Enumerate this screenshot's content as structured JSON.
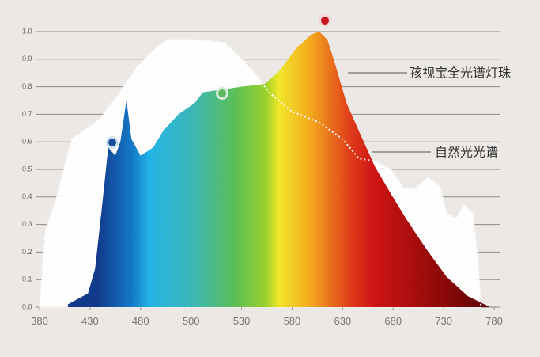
{
  "chart_data": {
    "type": "area",
    "xlim": [
      380,
      780
    ],
    "xticks": [
      380,
      430,
      480,
      500,
      530,
      580,
      630,
      680,
      730,
      780
    ],
    "ylim": [
      0,
      1
    ],
    "yticks": [
      {
        "value": 0,
        "label": "0.0"
      },
      0.1,
      0.2,
      0.3,
      0.4,
      0.5,
      0.6,
      0.7,
      0.8,
      0.9,
      {
        "value": 1,
        "label": "1.0"
      }
    ],
    "grid": true,
    "series": [
      {
        "name": "自然光光谱",
        "color": "#ffffff",
        "x": [
          380,
          386,
          396,
          412,
          424,
          439,
          458,
          476,
          486,
          491,
          502,
          520,
          530,
          545,
          557,
          580,
          607,
          630,
          646,
          662,
          678,
          690,
          702,
          714,
          726,
          733,
          742,
          750,
          759,
          763,
          767
        ],
        "values": [
          0,
          0.28,
          0.38,
          0.61,
          0.64,
          0.68,
          0.77,
          0.87,
          0.94,
          0.97,
          0.97,
          0.96,
          0.9,
          0.84,
          0.78,
          0.71,
          0.67,
          0.61,
          0.54,
          0.53,
          0.5,
          0.43,
          0.43,
          0.47,
          0.44,
          0.34,
          0.32,
          0.37,
          0.34,
          0.2,
          0
        ]
      },
      {
        "name": "孩视宝全光谱灯珠",
        "color": "#d21a1a",
        "x": [
          408,
          428,
          435,
          442,
          448,
          455,
          460,
          466,
          471,
          480,
          485,
          489,
          495,
          502,
          507,
          530,
          553,
          568,
          584,
          599,
          607,
          615,
          622,
          634,
          646,
          662,
          678,
          693,
          713,
          733,
          754,
          776
        ],
        "values": [
          0.01,
          0.05,
          0.14,
          0.37,
          0.58,
          0.55,
          0.6,
          0.75,
          0.61,
          0.55,
          0.58,
          0.64,
          0.7,
          0.74,
          0.78,
          0.8,
          0.81,
          0.86,
          0.94,
          0.99,
          1.0,
          0.97,
          0.89,
          0.74,
          0.64,
          0.51,
          0.41,
          0.32,
          0.21,
          0.11,
          0.04,
          0
        ]
      }
    ]
  }
}
